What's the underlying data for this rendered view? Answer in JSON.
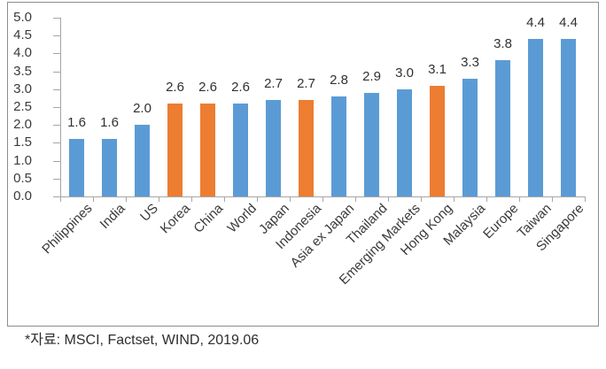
{
  "chart_data": {
    "type": "bar",
    "title": "",
    "xlabel": "",
    "ylabel": "",
    "categories": [
      "Philippines",
      "India",
      "US",
      "Korea",
      "China",
      "World",
      "Japan",
      "Indonesia",
      "Asia ex Japan",
      "Thailand",
      "Emerging Markets",
      "Hong Kong",
      "Malaysia",
      "Europe",
      "Taiwan",
      "Singapore"
    ],
    "values": [
      1.6,
      1.6,
      2.0,
      2.6,
      2.6,
      2.6,
      2.7,
      2.7,
      2.8,
      2.9,
      3.0,
      3.1,
      3.3,
      3.8,
      4.4,
      4.4
    ],
    "data_labels": [
      "1.6",
      "1.6",
      "2.0",
      "2.6",
      "2.6",
      "2.6",
      "2.7",
      "2.7",
      "2.8",
      "2.9",
      "3.0",
      "3.1",
      "3.3",
      "3.8",
      "4.4",
      "4.4"
    ],
    "bar_colors": [
      "blue",
      "blue",
      "blue",
      "orange",
      "orange",
      "blue",
      "blue",
      "orange",
      "blue",
      "blue",
      "blue",
      "orange",
      "blue",
      "blue",
      "blue",
      "blue"
    ],
    "highlighted_categories": [
      "Korea",
      "China",
      "Indonesia",
      "Hong Kong"
    ],
    "yticks": [
      "5.0",
      "4.5",
      "4.0",
      "3.5",
      "3.0",
      "2.5",
      "2.0",
      "1.5",
      "1.0",
      "0.5",
      "0.0"
    ],
    "ylim": [
      0,
      5
    ],
    "ytick_step": 0.5,
    "grid": false,
    "legend": false,
    "x_tick_marks": true
  },
  "colors": {
    "bar_blue": "#5B9BD5",
    "bar_orange": "#ED7D31",
    "axis_line": "#A6A6A6",
    "chart_border": "#8C8C8C",
    "text": "#3A3A3A"
  },
  "footnote": "*자료: MSCI, Factset, WIND, 2019.06"
}
